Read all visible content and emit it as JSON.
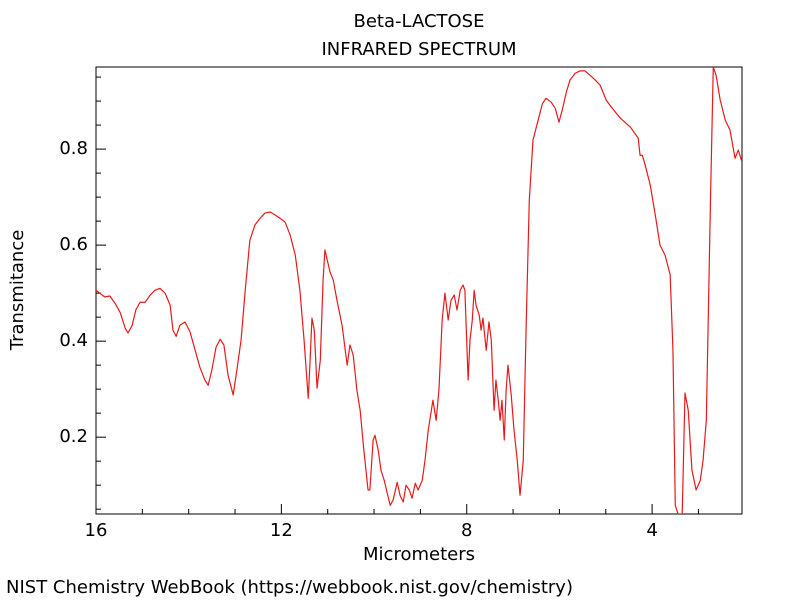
{
  "chart_data": {
    "type": "line",
    "title": "Beta-LACTOSE",
    "subtitle": "INFRARED SPECTRUM",
    "xlabel": "Micrometers",
    "ylabel": "Transmitance",
    "footer": "NIST Chemistry WebBook (https://webbook.nist.gov/chemistry)",
    "color": "#e8191a",
    "xlim": [
      16,
      2.06
    ],
    "ylim": [
      0.04,
      0.971
    ],
    "xticks": [
      16,
      12,
      8,
      4
    ],
    "yticks": [
      0.2,
      0.4,
      0.6,
      0.8
    ],
    "xminor": [
      15,
      14,
      13,
      11,
      10,
      9,
      7,
      6,
      5,
      3
    ],
    "yminor": [
      0.05,
      0.1,
      0.15,
      0.25,
      0.3,
      0.35,
      0.45,
      0.5,
      0.55,
      0.65,
      0.7,
      0.75,
      0.85,
      0.9,
      0.95
    ],
    "x": [
      16.0,
      15.81,
      15.7,
      15.59,
      15.48,
      15.37,
      15.31,
      15.22,
      15.14,
      15.05,
      14.94,
      14.83,
      14.73,
      14.62,
      14.51,
      14.4,
      14.34,
      14.27,
      14.19,
      14.08,
      13.97,
      13.86,
      13.76,
      13.65,
      13.58,
      13.5,
      13.41,
      13.32,
      13.24,
      13.15,
      13.04,
      12.96,
      12.87,
      12.78,
      12.68,
      12.57,
      12.46,
      12.35,
      12.24,
      12.14,
      12.03,
      11.92,
      11.81,
      11.7,
      11.6,
      11.51,
      11.42,
      11.38,
      11.34,
      11.29,
      11.23,
      11.16,
      11.1,
      11.06,
      11.01,
      10.95,
      10.88,
      10.8,
      10.69,
      10.58,
      10.52,
      10.45,
      10.37,
      10.3,
      10.22,
      10.13,
      10.09,
      10.02,
      9.98,
      9.91,
      9.85,
      9.78,
      9.7,
      9.65,
      9.59,
      9.5,
      9.44,
      9.37,
      9.31,
      9.24,
      9.18,
      9.11,
      9.05,
      8.96,
      8.9,
      8.83,
      8.77,
      8.73,
      8.66,
      8.6,
      8.53,
      8.47,
      8.4,
      8.34,
      8.27,
      8.21,
      8.14,
      8.08,
      8.04,
      7.97,
      7.93,
      7.88,
      7.84,
      7.8,
      7.73,
      7.69,
      7.65,
      7.58,
      7.52,
      7.47,
      7.41,
      7.37,
      7.32,
      7.28,
      7.24,
      7.19,
      7.15,
      7.11,
      7.04,
      6.98,
      6.91,
      6.85,
      6.78,
      6.72,
      6.65,
      6.57,
      6.46,
      6.37,
      6.29,
      6.18,
      6.09,
      6.01,
      5.94,
      5.85,
      5.77,
      5.66,
      5.55,
      5.45,
      5.34,
      5.23,
      5.12,
      4.99,
      4.86,
      4.69,
      4.47,
      4.3,
      4.26,
      4.21,
      4.15,
      4.04,
      3.93,
      3.83,
      3.72,
      3.61,
      3.55,
      3.5,
      3.44,
      3.35,
      3.29,
      3.22,
      3.14,
      3.05,
      2.96,
      2.9,
      2.83,
      2.74,
      2.68,
      2.62,
      2.53,
      2.42,
      2.32,
      2.21,
      2.14,
      2.06
    ],
    "values": [
      0.506,
      0.492,
      0.494,
      0.479,
      0.46,
      0.427,
      0.417,
      0.433,
      0.465,
      0.481,
      0.481,
      0.496,
      0.506,
      0.51,
      0.5,
      0.475,
      0.423,
      0.41,
      0.433,
      0.44,
      0.419,
      0.381,
      0.346,
      0.319,
      0.308,
      0.34,
      0.387,
      0.404,
      0.392,
      0.329,
      0.288,
      0.34,
      0.402,
      0.506,
      0.61,
      0.642,
      0.656,
      0.667,
      0.669,
      0.663,
      0.656,
      0.648,
      0.621,
      0.579,
      0.506,
      0.402,
      0.281,
      0.36,
      0.448,
      0.423,
      0.302,
      0.36,
      0.527,
      0.59,
      0.569,
      0.544,
      0.527,
      0.485,
      0.433,
      0.35,
      0.392,
      0.371,
      0.298,
      0.256,
      0.173,
      0.09,
      0.09,
      0.194,
      0.204,
      0.173,
      0.131,
      0.11,
      0.077,
      0.058,
      0.069,
      0.106,
      0.079,
      0.065,
      0.1,
      0.09,
      0.073,
      0.104,
      0.09,
      0.11,
      0.152,
      0.215,
      0.252,
      0.277,
      0.235,
      0.298,
      0.444,
      0.5,
      0.444,
      0.485,
      0.496,
      0.465,
      0.506,
      0.517,
      0.506,
      0.319,
      0.402,
      0.444,
      0.506,
      0.475,
      0.454,
      0.423,
      0.448,
      0.381,
      0.44,
      0.402,
      0.256,
      0.319,
      0.277,
      0.235,
      0.277,
      0.194,
      0.298,
      0.35,
      0.288,
      0.215,
      0.152,
      0.079,
      0.152,
      0.423,
      0.694,
      0.819,
      0.86,
      0.894,
      0.906,
      0.898,
      0.885,
      0.856,
      0.881,
      0.919,
      0.944,
      0.958,
      0.963,
      0.963,
      0.954,
      0.944,
      0.933,
      0.902,
      0.885,
      0.865,
      0.846,
      0.823,
      0.787,
      0.787,
      0.767,
      0.725,
      0.662,
      0.6,
      0.579,
      0.538,
      0.381,
      0.058,
      0.04,
      0.04,
      0.292,
      0.256,
      0.131,
      0.09,
      0.11,
      0.152,
      0.235,
      0.694,
      0.971,
      0.954,
      0.902,
      0.86,
      0.84,
      0.781,
      0.798,
      0.773
    ]
  }
}
